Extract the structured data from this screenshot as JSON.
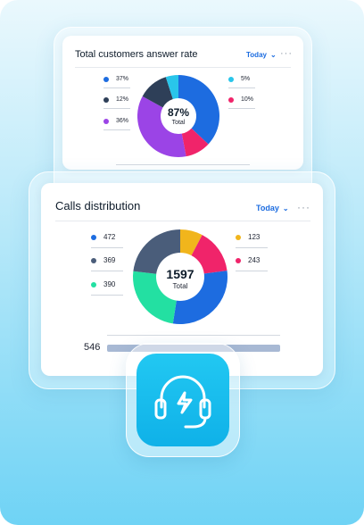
{
  "colors": {
    "blue": "#1d6ce0",
    "purple": "#9b44e6",
    "navy": "#2e3f58",
    "cyan": "#29c5ea",
    "pink": "#f0246a",
    "green": "#23e0a2",
    "yellow": "#f1b51c",
    "slate": "#4a5d7a"
  },
  "answer_rate_card": {
    "title": "Total customers answer rate",
    "period": "Today",
    "more_icon": "more-dots-icon",
    "center_value": "87%",
    "center_label": "Total",
    "legend_left": [
      {
        "value": "37%",
        "color": "#1d6ce0"
      },
      {
        "value": "12%",
        "color": "#2e3f58"
      },
      {
        "value": "36%",
        "color": "#9b44e6"
      }
    ],
    "legend_right": [
      {
        "value": "5%",
        "color": "#29c5ea"
      },
      {
        "value": "10%",
        "color": "#f0246a"
      }
    ]
  },
  "calls_card": {
    "title": "Calls distribution",
    "period": "Today",
    "more_icon": "more-dots-icon",
    "center_value": "1597",
    "center_label": "Total",
    "legend_left": [
      {
        "value": "472",
        "color": "#1d6ce0"
      },
      {
        "value": "369",
        "color": "#4a5d7a"
      },
      {
        "value": "390",
        "color": "#23e0a2"
      }
    ],
    "legend_right": [
      {
        "value": "123",
        "color": "#f1b51c"
      },
      {
        "value": "243",
        "color": "#f0246a"
      }
    ],
    "bar_label": "546"
  },
  "app_icon": "headset-lightning-icon",
  "chart_data": [
    {
      "type": "pie",
      "title": "Total customers answer rate",
      "total_label": "87%",
      "slices": [
        {
          "value": 37,
          "color": "#1d6ce0"
        },
        {
          "value": 10,
          "color": "#f0246a"
        },
        {
          "value": 36,
          "color": "#9b44e6"
        },
        {
          "value": 12,
          "color": "#2e3f58"
        },
        {
          "value": 5,
          "color": "#29c5ea"
        }
      ]
    },
    {
      "type": "pie",
      "title": "Calls distribution",
      "total_label": "1597",
      "slices": [
        {
          "value": 123,
          "color": "#f1b51c"
        },
        {
          "value": 243,
          "color": "#f0246a"
        },
        {
          "value": 472,
          "color": "#1d6ce0"
        },
        {
          "value": 390,
          "color": "#23e0a2"
        },
        {
          "value": 369,
          "color": "#4a5d7a"
        }
      ]
    }
  ]
}
